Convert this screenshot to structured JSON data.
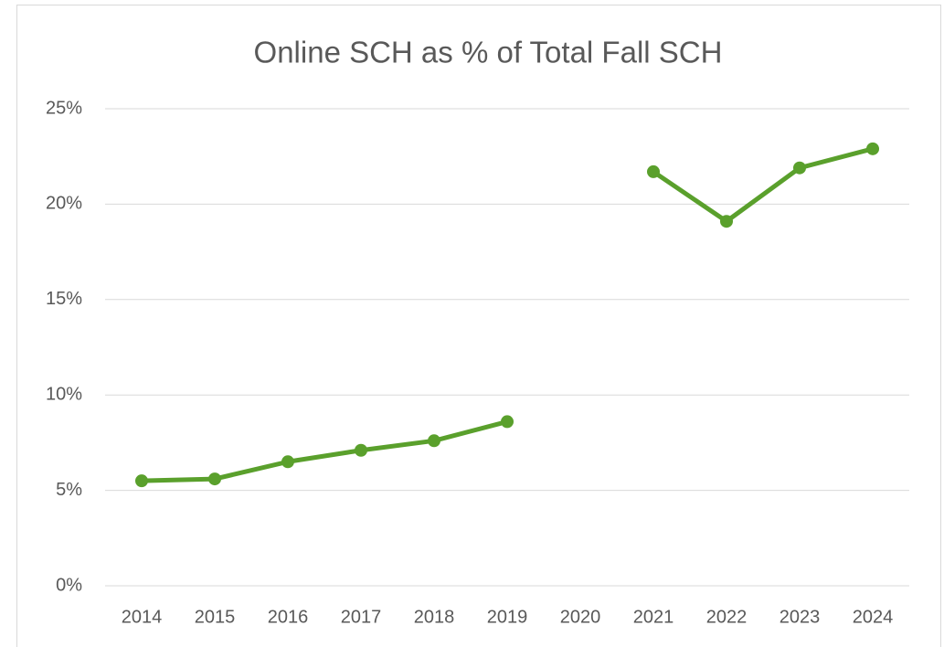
{
  "chart_data": {
    "type": "line",
    "title": "Online SCH as % of Total Fall SCH",
    "categories": [
      "2014",
      "2015",
      "2016",
      "2017",
      "2018",
      "2019",
      "2020",
      "2021",
      "2022",
      "2023",
      "2024"
    ],
    "series": [
      {
        "color": "#5aa02c",
        "values": [
          5.5,
          5.6,
          6.5,
          7.1,
          7.6,
          8.6,
          null,
          21.7,
          19.1,
          21.9,
          22.9
        ]
      }
    ],
    "ylim": [
      0,
      25
    ],
    "yticks": [
      {
        "value": 0,
        "label": "0%"
      },
      {
        "value": 5,
        "label": "5%"
      },
      {
        "value": 10,
        "label": "10%"
      },
      {
        "value": 15,
        "label": "15%"
      },
      {
        "value": 20,
        "label": "20%"
      },
      {
        "value": 25,
        "label": "25%"
      }
    ],
    "grid": true
  }
}
